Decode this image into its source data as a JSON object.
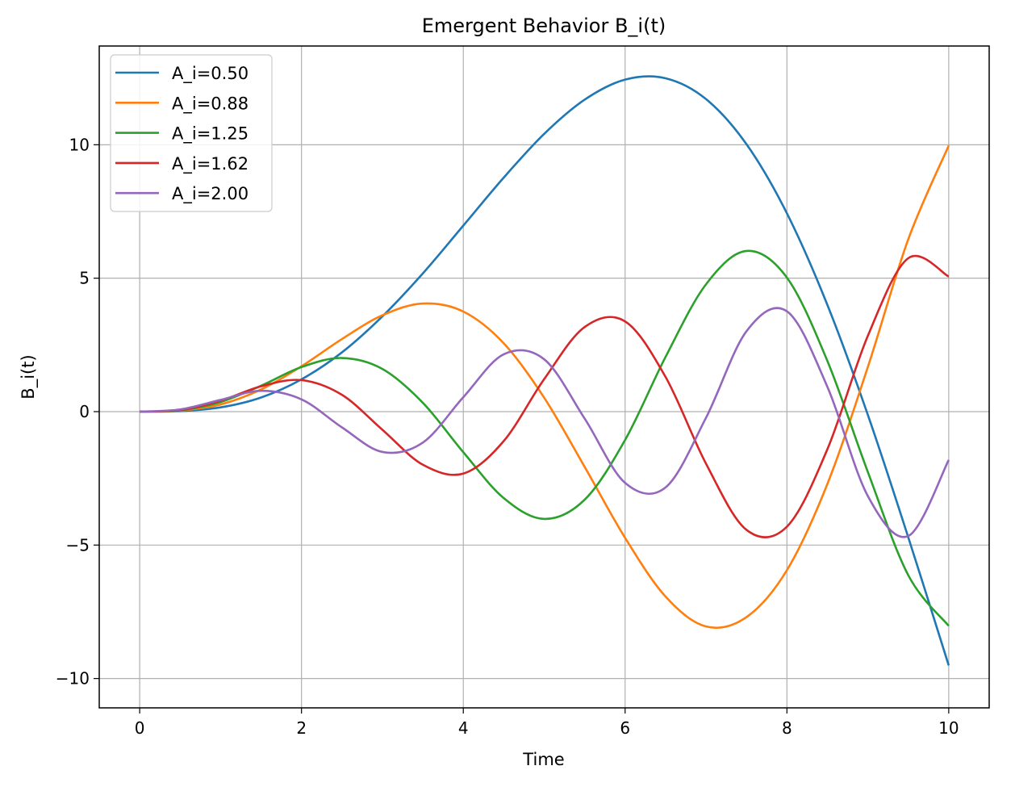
{
  "chart_data": {
    "type": "line",
    "title": "Emergent Behavior B_i(t)",
    "xlabel": "Time",
    "ylabel": "B_i(t)",
    "xlim": [
      -0.5,
      10.5
    ],
    "ylim": [
      -11.1,
      13.7
    ],
    "xticks": [
      0,
      2,
      4,
      6,
      8,
      10
    ],
    "xtick_labels": [
      "0",
      "2",
      "4",
      "6",
      "8",
      "10"
    ],
    "yticks": [
      -10,
      -5,
      0,
      5,
      10
    ],
    "ytick_labels": [
      "−10",
      "−5",
      "0",
      "5",
      "10"
    ],
    "grid": true,
    "legend_position": "top-left",
    "x": [
      0,
      0.5,
      1,
      1.5,
      2,
      2.5,
      3,
      3.5,
      4,
      4.5,
      5,
      5.5,
      6,
      6.5,
      7,
      7.5,
      8,
      8.5,
      9,
      9.5,
      10
    ],
    "series": [
      {
        "name": "A_i=0.50",
        "color": "#1f77b4",
        "values": [
          0,
          0.02,
          0.16,
          0.53,
          1.21,
          2.22,
          3.57,
          5.18,
          6.97,
          8.77,
          10.41,
          11.69,
          12.44,
          12.49,
          11.71,
          10.02,
          7.43,
          4.0,
          -0.12,
          -4.71,
          -9.51
        ]
      },
      {
        "name": "A_i=0.88",
        "color": "#ff7f0e",
        "values": [
          0,
          0.04,
          0.27,
          0.83,
          1.7,
          2.72,
          3.61,
          4.05,
          3.75,
          2.56,
          0.52,
          -2.07,
          -4.73,
          -6.93,
          -8.05,
          -7.7,
          -5.94,
          -2.71,
          1.67,
          6.46,
          9.97
        ]
      },
      {
        "name": "A_i=1.25",
        "color": "#2ca02c",
        "values": [
          0,
          0.05,
          0.36,
          0.97,
          1.67,
          2.01,
          1.6,
          0.33,
          -1.52,
          -3.24,
          -4.02,
          -3.3,
          -1.06,
          2.05,
          4.77,
          6.02,
          5.02,
          1.9,
          -2.26,
          -6.13,
          -8.03
        ]
      },
      {
        "name": "A_i=1.62",
        "color": "#d62728",
        "values": [
          0,
          0.06,
          0.41,
          0.95,
          1.18,
          0.63,
          -0.68,
          -1.99,
          -2.32,
          -1.1,
          1.22,
          3.17,
          3.38,
          1.3,
          -1.95,
          -4.43,
          -4.31,
          -1.41,
          2.84,
          5.75,
          5.06
        ]
      },
      {
        "name": "A_i=2.00",
        "color": "#9467bd",
        "values": [
          0,
          0.08,
          0.44,
          0.78,
          0.46,
          -0.59,
          -1.51,
          -1.16,
          0.54,
          2.15,
          1.96,
          -0.26,
          -2.67,
          -2.84,
          -0.23,
          3.01,
          3.76,
          0.93,
          -3.16,
          -4.66,
          -1.81
        ]
      }
    ]
  }
}
